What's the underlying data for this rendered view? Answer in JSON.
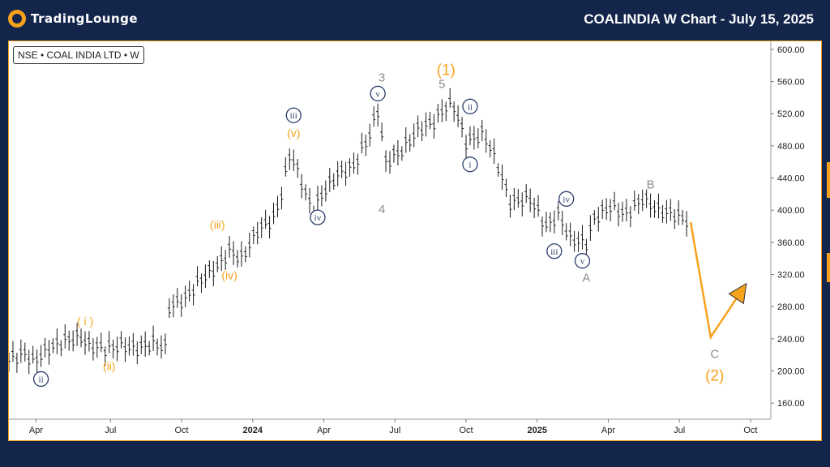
{
  "header": {
    "brand": "TradingLounge",
    "title": "COALINDIA W Chart - July 15, 2025"
  },
  "symbol_label": "NSE • COAL INDIA LTD • W",
  "colors": {
    "background": "#13254a",
    "accent": "#f7a21b",
    "wave_blue": "#2b3d6b",
    "wave_gray": "#8c8c8c",
    "bars": "#1a1a1a"
  },
  "chart_data": {
    "type": "line",
    "y_ticks": [
      "600.00",
      "560.00",
      "520.00",
      "480.00",
      "440.00",
      "400.00",
      "360.00",
      "320.00",
      "280.00",
      "240.00",
      "200.00",
      "160.00"
    ],
    "x_ticks": [
      "Apr",
      "Jul",
      "Oct",
      "2024",
      "Apr",
      "Jul",
      "Oct",
      "2025",
      "Apr",
      "Jul",
      "Oct"
    ],
    "ylim": [
      140,
      610
    ],
    "price_series": [
      {
        "x": 0,
        "y": 215
      },
      {
        "x": 4,
        "y": 222
      },
      {
        "x": 6,
        "y": 212
      },
      {
        "x": 10,
        "y": 228
      },
      {
        "x": 14,
        "y": 238
      },
      {
        "x": 18,
        "y": 242
      },
      {
        "x": 20,
        "y": 232
      },
      {
        "x": 24,
        "y": 228
      },
      {
        "x": 28,
        "y": 232
      },
      {
        "x": 32,
        "y": 228
      },
      {
        "x": 36,
        "y": 235
      },
      {
        "x": 39,
        "y": 230
      },
      {
        "x": 40,
        "y": 280
      },
      {
        "x": 44,
        "y": 290
      },
      {
        "x": 48,
        "y": 315
      },
      {
        "x": 52,
        "y": 330
      },
      {
        "x": 55,
        "y": 350
      },
      {
        "x": 58,
        "y": 340
      },
      {
        "x": 62,
        "y": 375
      },
      {
        "x": 66,
        "y": 390
      },
      {
        "x": 68,
        "y": 420
      },
      {
        "x": 70,
        "y": 470
      },
      {
        "x": 72,
        "y": 450
      },
      {
        "x": 74,
        "y": 420
      },
      {
        "x": 76,
        "y": 400
      },
      {
        "x": 78,
        "y": 420
      },
      {
        "x": 82,
        "y": 445
      },
      {
        "x": 86,
        "y": 455
      },
      {
        "x": 90,
        "y": 495
      },
      {
        "x": 92,
        "y": 525
      },
      {
        "x": 94,
        "y": 460
      },
      {
        "x": 98,
        "y": 475
      },
      {
        "x": 102,
        "y": 500
      },
      {
        "x": 106,
        "y": 510
      },
      {
        "x": 109,
        "y": 530
      },
      {
        "x": 111,
        "y": 530
      },
      {
        "x": 114,
        "y": 485
      },
      {
        "x": 118,
        "y": 495
      },
      {
        "x": 120,
        "y": 480
      },
      {
        "x": 122,
        "y": 455
      },
      {
        "x": 125,
        "y": 410
      },
      {
        "x": 130,
        "y": 415
      },
      {
        "x": 134,
        "y": 380
      },
      {
        "x": 137,
        "y": 395
      },
      {
        "x": 140,
        "y": 365
      },
      {
        "x": 144,
        "y": 360
      },
      {
        "x": 146,
        "y": 390
      },
      {
        "x": 150,
        "y": 405
      },
      {
        "x": 154,
        "y": 395
      },
      {
        "x": 158,
        "y": 415
      },
      {
        "x": 162,
        "y": 400
      },
      {
        "x": 166,
        "y": 395
      },
      {
        "x": 170,
        "y": 385
      }
    ],
    "projection": [
      {
        "x": 170,
        "y": 385
      },
      {
        "x": 175,
        "y": 242
      },
      {
        "x": 183,
        "y": 302
      }
    ],
    "wave_labels": [
      {
        "text": "ii",
        "style": "circle",
        "x": 8,
        "y": 190
      },
      {
        "text": "( i )",
        "style": "orange",
        "x": 19,
        "y": 262
      },
      {
        "text": "(ii)",
        "style": "orange",
        "x": 25,
        "y": 206
      },
      {
        "text": "(iii)",
        "style": "orange",
        "x": 52,
        "y": 382
      },
      {
        "text": "(iv)",
        "style": "orange",
        "x": 55,
        "y": 319
      },
      {
        "text": "(v)",
        "style": "orange",
        "x": 71,
        "y": 496
      },
      {
        "text": "iii",
        "style": "circle",
        "x": 71,
        "y": 518
      },
      {
        "text": "iv",
        "style": "circle",
        "x": 77,
        "y": 391
      },
      {
        "text": "v",
        "style": "circle",
        "x": 92,
        "y": 545
      },
      {
        "text": "3",
        "style": "gray",
        "x": 93,
        "y": 565
      },
      {
        "text": "4",
        "style": "gray",
        "x": 93,
        "y": 401
      },
      {
        "text": "5",
        "style": "gray",
        "x": 108,
        "y": 557
      },
      {
        "text": "(1)",
        "style": "orange_big",
        "x": 109,
        "y": 574
      },
      {
        "text": "ii",
        "style": "circle",
        "x": 115,
        "y": 529
      },
      {
        "text": "i",
        "style": "circle",
        "x": 115,
        "y": 457
      },
      {
        "text": "iv",
        "style": "circle",
        "x": 139,
        "y": 414
      },
      {
        "text": "iii",
        "style": "circle",
        "x": 136,
        "y": 349
      },
      {
        "text": "v",
        "style": "circle",
        "x": 143,
        "y": 337
      },
      {
        "text": "A",
        "style": "gray",
        "x": 144,
        "y": 316
      },
      {
        "text": "B",
        "style": "gray",
        "x": 160,
        "y": 432
      },
      {
        "text": "C",
        "style": "gray",
        "x": 176,
        "y": 221
      },
      {
        "text": "(2)",
        "style": "orange_big",
        "x": 176,
        "y": 194
      }
    ]
  }
}
